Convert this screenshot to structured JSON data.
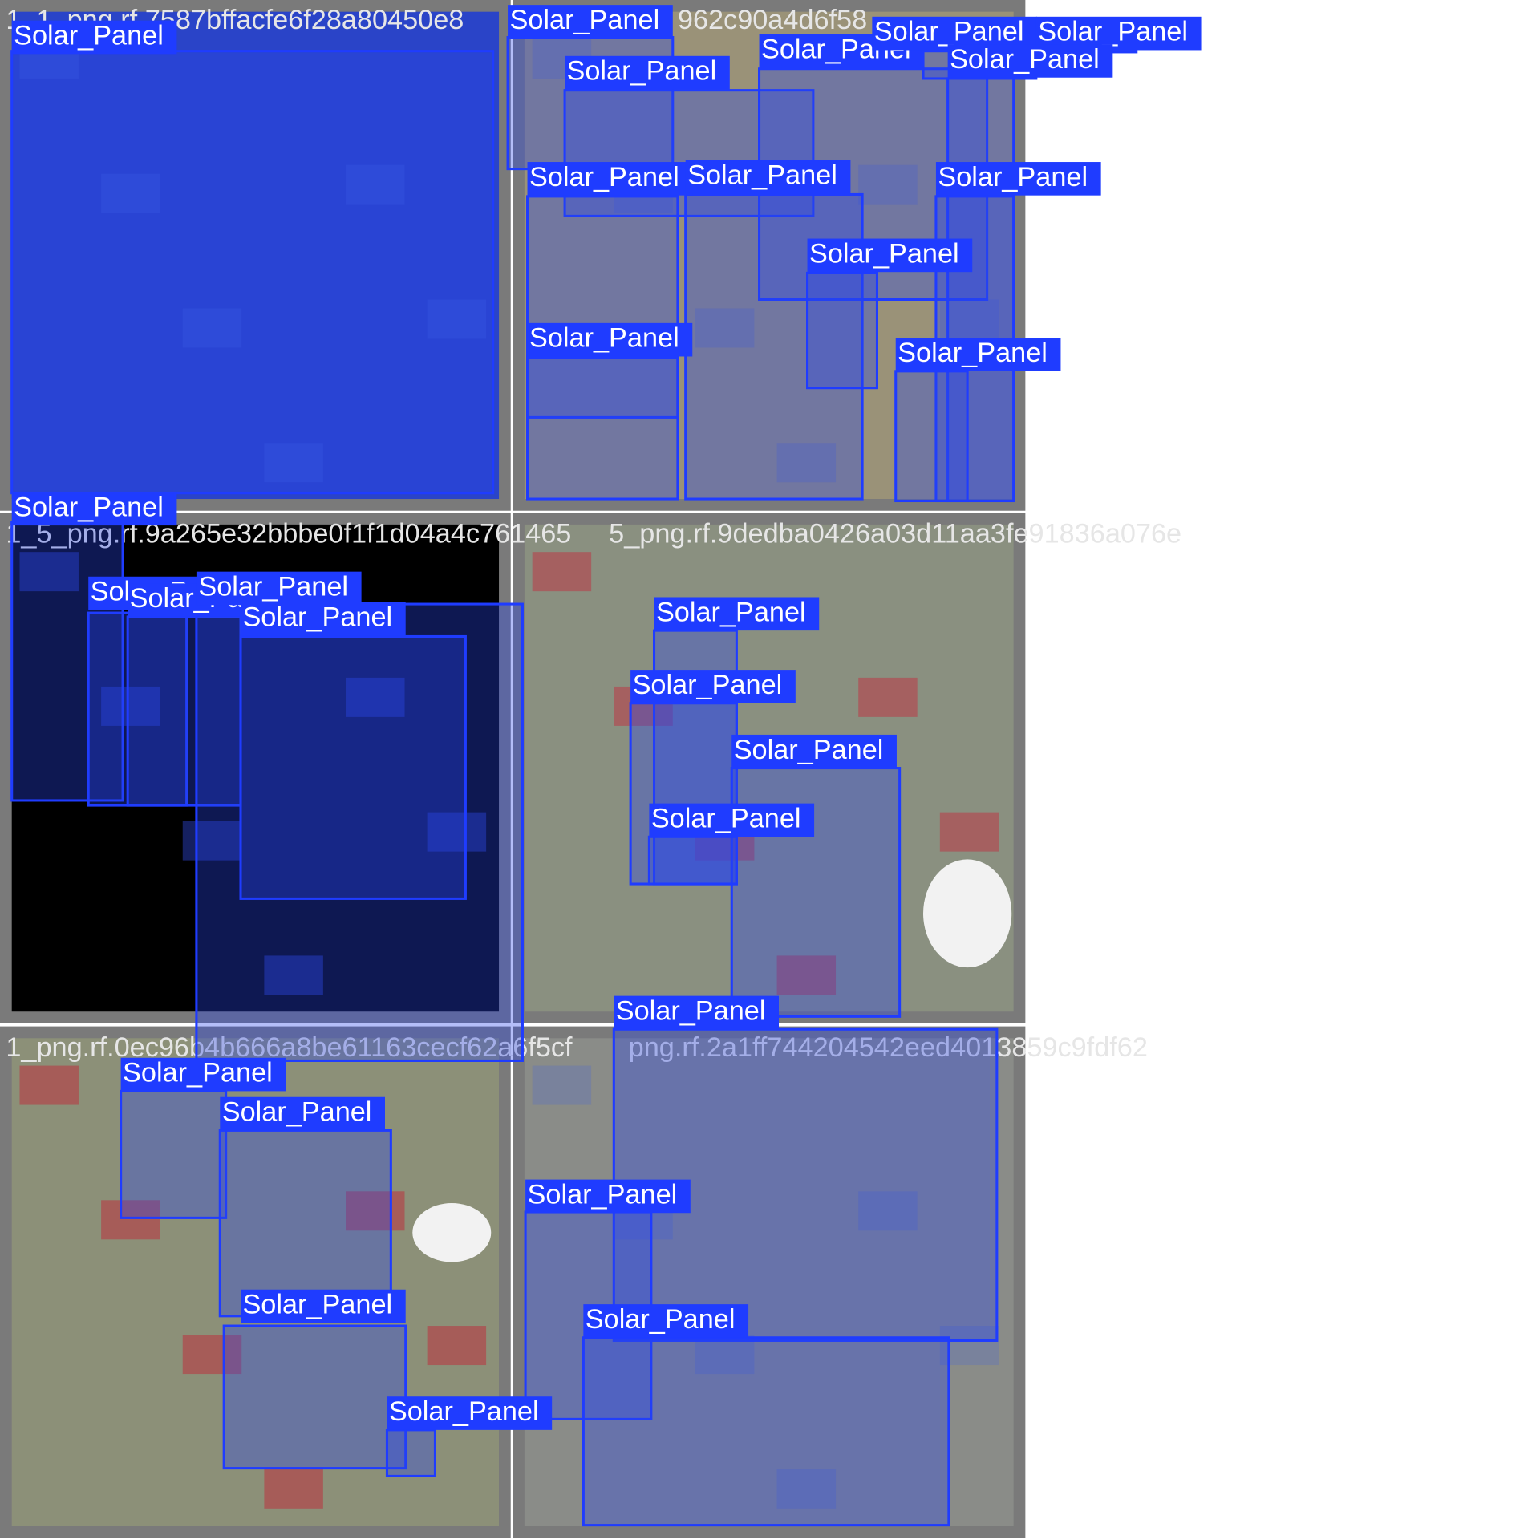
{
  "tiles": [
    {
      "filename": "1_1_png.rf.7587bffacfe6f28a80450e8"
    },
    {
      "filename": "962c90a4d6f58"
    },
    {
      "filename": "1_5_png.rf.9a265e32bbbe0f1f1d04a4c761465"
    },
    {
      "filename": "5_png.rf.9dedba0426a03d11aa3fe91836a076e"
    },
    {
      "filename": "1_png.rf.0ec96b4b666a8be61163cecf62a6f5cf"
    },
    {
      "filename": "png.rf.2a1ff744204542eed4013859c9fdf62"
    }
  ],
  "detections": [
    {
      "label": "Solar_Panel"
    },
    {
      "label": "Solar_Panel"
    },
    {
      "label": "Solar_Panel"
    },
    {
      "label": "Solar_Panel"
    },
    {
      "label": "Solar_Panel"
    },
    {
      "label": "Solar_Panel"
    },
    {
      "label": "Solar_Panel"
    },
    {
      "label": "Solar_Panel"
    },
    {
      "label": "Solar_Panel"
    },
    {
      "label": "Solar_Panel"
    },
    {
      "label": "Solar_Panel"
    },
    {
      "label": "Solar_Panel"
    },
    {
      "label": "Solar_Panel"
    },
    {
      "label": "Solar_Panel"
    },
    {
      "label": "Solar_Panel"
    },
    {
      "label": "Solar_Panel"
    },
    {
      "label": "Solar_Panel"
    },
    {
      "label": "Solar_Panel"
    },
    {
      "label": "Solar_Panel"
    },
    {
      "label": "Solar_Panel"
    },
    {
      "label": "Solar_Panel"
    },
    {
      "label": "Solar_Panel"
    },
    {
      "label": "Solar_Panel"
    },
    {
      "label": "Solar_Panel"
    },
    {
      "label": "Solar_Panel"
    },
    {
      "label": "Solar_Panel"
    },
    {
      "label": "Solar_Panel"
    },
    {
      "label": "Solar_Panel"
    },
    {
      "label": "Solar_Panel"
    }
  ]
}
